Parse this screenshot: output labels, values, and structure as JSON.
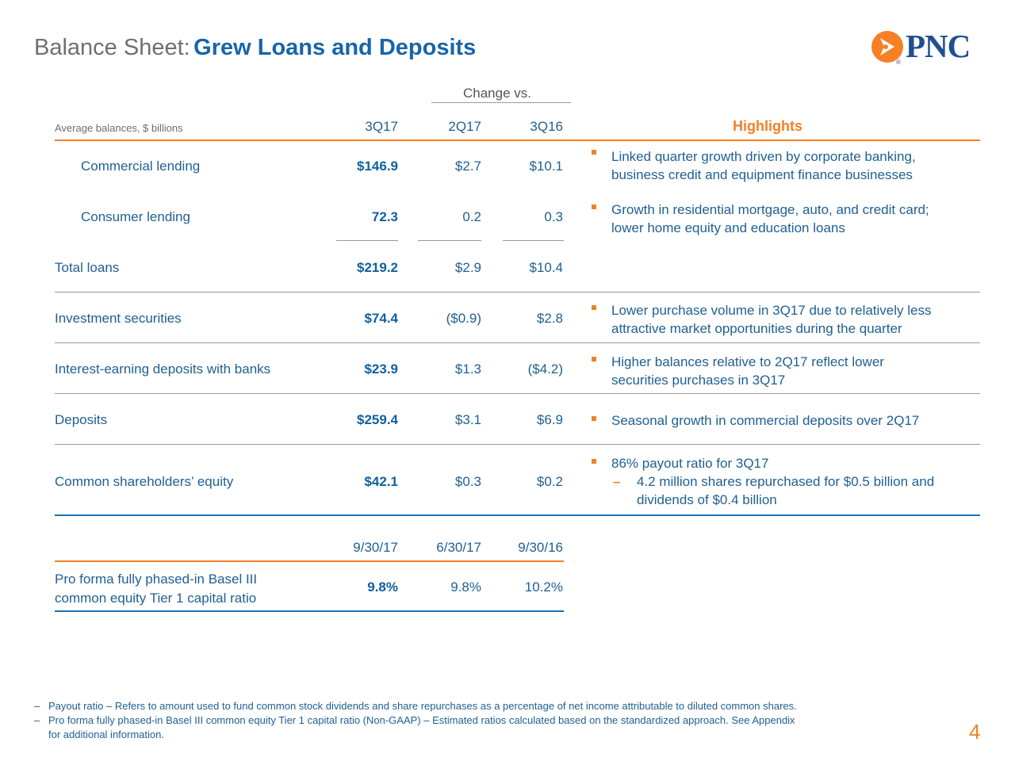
{
  "title": {
    "prefix": "Balance Sheet:",
    "main": "Grew Loans and Deposits"
  },
  "logo": {
    "text": "PNC",
    "reg": "®",
    "icon": "pnc-orange-arrow-icon",
    "colors": {
      "orange": "#F58025",
      "navy": "#1D4F91"
    }
  },
  "table": {
    "change_vs": "Change vs.",
    "units_label": "Average balances, $ billions",
    "columns": [
      "3Q17",
      "2Q17",
      "3Q16"
    ],
    "highlights_title": "Highlights",
    "rows": [
      {
        "label": "Commercial lending",
        "v3q17": "$146.9",
        "v2q17": "$2.7",
        "v3q16": "$10.1"
      },
      {
        "label": "Consumer lending",
        "v3q17": "72.3",
        "v2q17": "0.2",
        "v3q16": "0.3"
      },
      {
        "label": "Total loans",
        "v3q17": "$219.2",
        "v2q17": "$2.9",
        "v3q16": "$10.4"
      },
      {
        "label": "Investment securities",
        "v3q17": "$74.4",
        "v2q17": "($0.9)",
        "v3q16": "$2.8"
      },
      {
        "label": "Interest-earning deposits with banks",
        "v3q17": "$23.9",
        "v2q17": "$1.3",
        "v3q16": "($4.2)"
      },
      {
        "label": "Deposits",
        "v3q17": "$259.4",
        "v2q17": "$3.1",
        "v3q16": "$6.9"
      },
      {
        "label": "Common shareholders’ equity",
        "v3q17": "$42.1",
        "v2q17": "$0.3",
        "v3q16": "$0.2"
      }
    ],
    "highlights": [
      {
        "line1": "Linked quarter growth driven by corporate banking,",
        "line2": "business credit and equipment finance businesses"
      },
      {
        "line1": "Growth in residential mortgage, auto, and credit card;",
        "line2": "lower home equity and education loans"
      },
      {
        "line1": "Lower purchase volume in 3Q17 due to relatively less",
        "line2": "attractive market opportunities during the quarter"
      },
      {
        "line1": "Higher balances relative to 2Q17 reflect lower",
        "line2": "securities purchases in 3Q17"
      },
      {
        "line1": "Seasonal growth in commercial deposits over 2Q17"
      },
      {
        "line1": "86% payout ratio for 3Q17",
        "sub_dash": "–",
        "sub1": "4.2 million shares repurchased for $0.5 billion and",
        "sub2": "dividends of $0.4 billion"
      }
    ]
  },
  "capital": {
    "columns": [
      "9/30/17",
      "6/30/17",
      "9/30/16"
    ],
    "label1": "Pro forma fully phased-in Basel III",
    "label2": "common equity Tier 1 capital ratio",
    "v1": "9.8%",
    "v2": "9.8%",
    "v3": "10.2%"
  },
  "footnotes": {
    "dash": "–",
    "note1": "Payout ratio – Refers to amount used to fund common stock dividends and share repurchases as a percentage of net income attributable to diluted common shares.",
    "note2a": "Pro forma fully phased-in Basel III common equity Tier 1 capital ratio (Non-GAAP) – Estimated ratios calculated based on the standardized approach. See Appendix",
    "note2b": "for additional information."
  },
  "page_number": "4"
}
